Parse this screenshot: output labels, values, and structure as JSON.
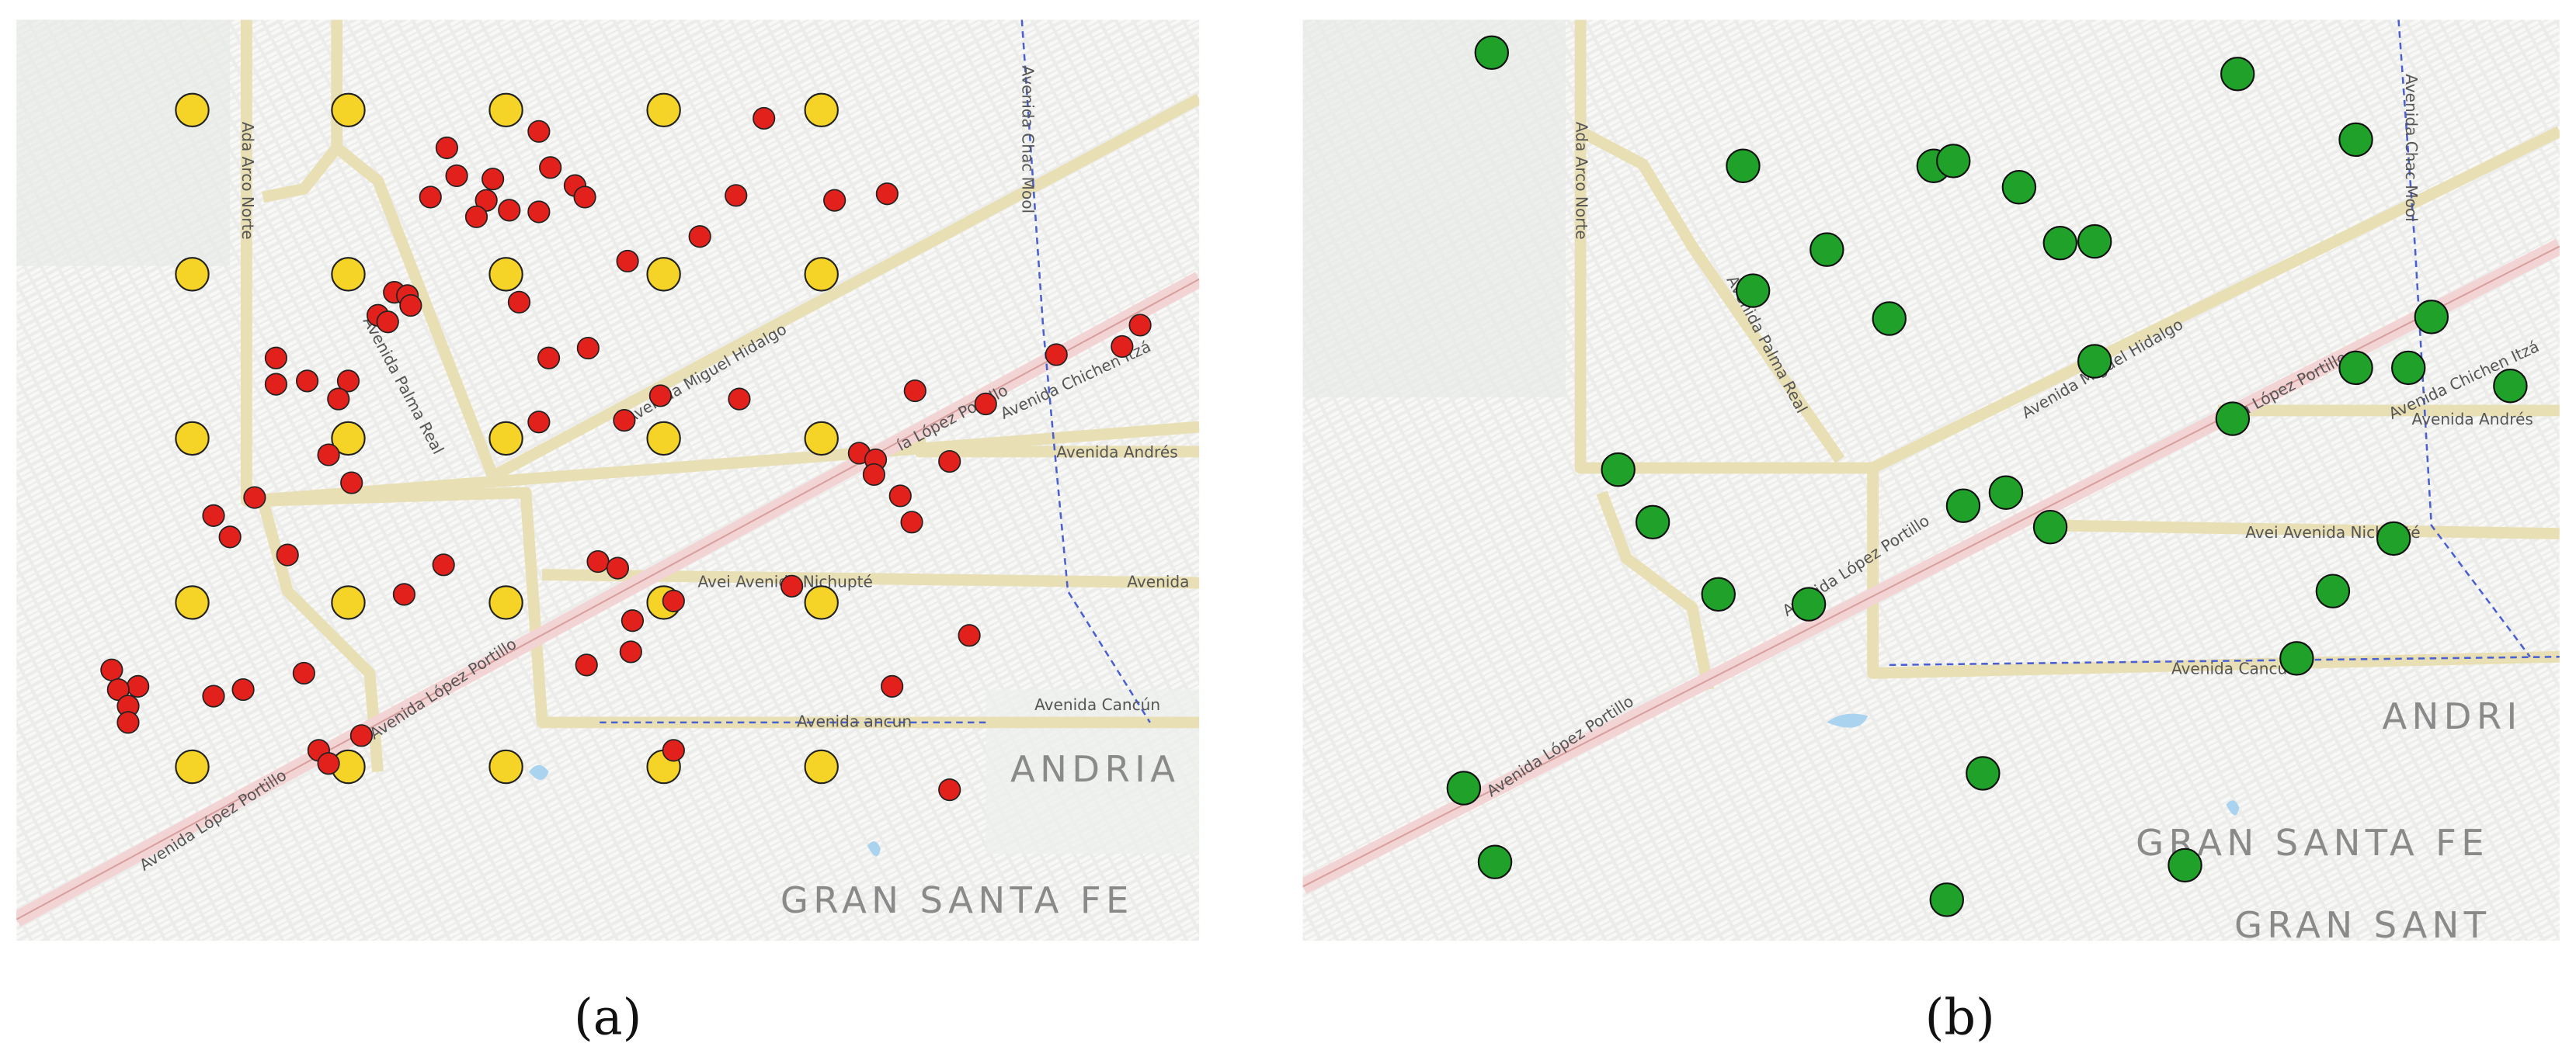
{
  "panel_a": {
    "caption": "(a)",
    "street_labels": [
      "Ada Arco Norte",
      "Avenida Chac Mool",
      "Avenida Palma Real",
      "Avenida Miguel Hidalgo",
      "ía López Portillo",
      "Avenida Chichen Itzá",
      "Avenida Andrés",
      "Avei Avenida Nichupté",
      "Avenida",
      "Avenida ancun",
      "Avenida Cancún",
      "Avenida López Portillo",
      "Avenida López Portillo"
    ],
    "place_labels": [
      "ANDRIA",
      "GRAN SANTA FE"
    ]
  },
  "panel_b": {
    "caption": "(b)",
    "street_labels": [
      "Ada Arco Norte",
      "Avenida Chac Mool",
      "Avenida Palma Real",
      "Avenida Miguel Hidalgo",
      "ía López Portillo",
      "Avenida Chichen Itzá",
      "Avenida Andrés",
      "Avei Avenida Nichupté",
      "Avenida Cancún",
      "Avenida López Portillo",
      "Avenida López Portillo"
    ],
    "place_labels": [
      "ANDRI",
      "GRAN SANTA FE",
      "GRAN SANT"
    ]
  }
}
